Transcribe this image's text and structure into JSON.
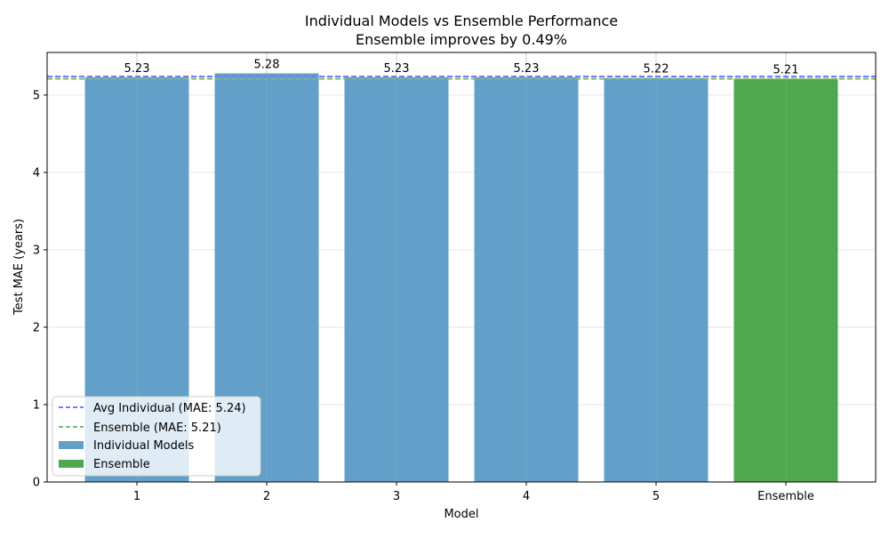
{
  "chart_data": {
    "type": "bar",
    "title": "Individual Models vs Ensemble Performance",
    "subtitle": "Ensemble improves by 0.49%",
    "xlabel": "Model",
    "ylabel": "Test MAE (years)",
    "categories": [
      "1",
      "2",
      "3",
      "4",
      "5",
      "Ensemble"
    ],
    "values": [
      5.23,
      5.28,
      5.23,
      5.23,
      5.22,
      5.21
    ],
    "value_labels": [
      "5.23",
      "5.28",
      "5.23",
      "5.23",
      "5.22",
      "5.21"
    ],
    "bar_groups": [
      "Individual Models",
      "Individual Models",
      "Individual Models",
      "Individual Models",
      "Individual Models",
      "Ensemble"
    ],
    "ylim": [
      0,
      5.55
    ],
    "yticks": [
      0,
      1,
      2,
      3,
      4,
      5
    ],
    "grid": true,
    "reference_lines": [
      {
        "label": "Avg Individual (MAE: 5.24)",
        "value": 5.24,
        "color": "#7777ff"
      },
      {
        "label": "Ensemble (MAE: 5.21)",
        "value": 5.21,
        "color": "#77bb77"
      }
    ],
    "legend_bars": [
      {
        "label": "Individual Models",
        "color": "#62a0ca"
      },
      {
        "label": "Ensemble",
        "color": "#4ea94e"
      }
    ],
    "legend_position": "lower-left",
    "colors": {
      "individual": "#62a0ca",
      "ensemble": "#4ea94e",
      "avg_line": "#7777ff",
      "ensemble_line": "#77bb77",
      "grid": "#e6e6e6"
    }
  }
}
